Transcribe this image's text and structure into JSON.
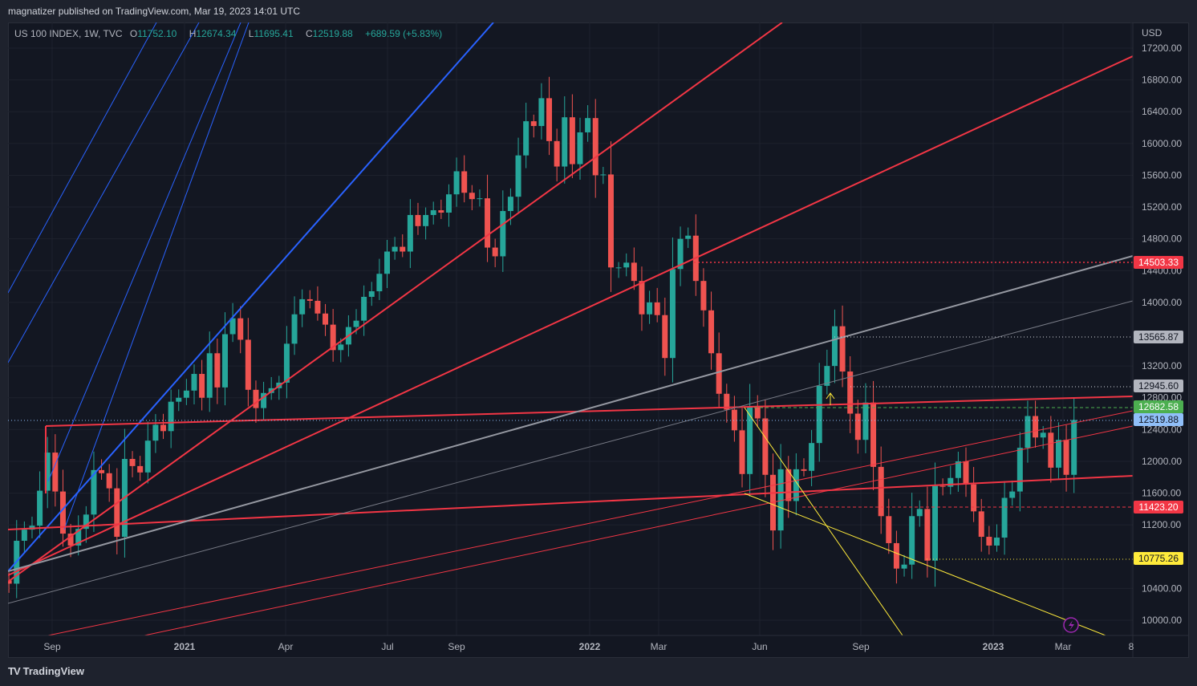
{
  "publisher_line": "magnatizer published on TradingView.com, Mar 19, 2023 14:01 UTC",
  "legend": {
    "symbol": "US 100 INDEX, 1W, TVC",
    "o_label": "O",
    "o": "11752.10",
    "h_label": "H",
    "h": "12674.34",
    "l_label": "L",
    "l": "11695.41",
    "c_label": "C",
    "c": "12519.88",
    "change": "+689.59 (+5.83%)"
  },
  "currency": "USD",
  "price_axis": [
    "17200.00",
    "16800.00",
    "16400.00",
    "16000.00",
    "15600.00",
    "15200.00",
    "14800.00",
    "14400.00",
    "14000.00",
    "13200.00",
    "12800.00",
    "12400.00",
    "12000.00",
    "11600.00",
    "11200.00",
    "10400.00",
    "10000.00"
  ],
  "time_axis": [
    {
      "label": "Sep",
      "bold": false
    },
    {
      "label": "2021",
      "bold": true
    },
    {
      "label": "Apr",
      "bold": false
    },
    {
      "label": "Jul",
      "bold": false
    },
    {
      "label": "Sep",
      "bold": false
    },
    {
      "label": "2022",
      "bold": true
    },
    {
      "label": "Mar",
      "bold": false
    },
    {
      "label": "Jun",
      "bold": false
    },
    {
      "label": "Sep",
      "bold": false
    },
    {
      "label": "2023",
      "bold": true
    },
    {
      "label": "Mar",
      "bold": false
    },
    {
      "label": "8",
      "bold": false
    }
  ],
  "badges": [
    {
      "value": "14503.33",
      "bg": "#f23645",
      "fg": "#ffffff"
    },
    {
      "value": "13565.87",
      "bg": "#b2b5be",
      "fg": "#131722"
    },
    {
      "value": "12945.60",
      "bg": "#b2b5be",
      "fg": "#131722"
    },
    {
      "value": "12682.58",
      "bg": "#4caf50",
      "fg": "#ffffff"
    },
    {
      "value": "12519.88",
      "bg": "#90bff9",
      "fg": "#131722"
    },
    {
      "value": "11423.20",
      "bg": "#f23645",
      "fg": "#ffffff"
    },
    {
      "value": "10775.26",
      "bg": "#ffeb3b",
      "fg": "#131722"
    }
  ],
  "colors": {
    "up": "#26a69a",
    "down": "#ef5350",
    "bg": "#131722",
    "red_line": "#f23645",
    "blue_line": "#2962ff",
    "gray_line": "#787b86",
    "yellow_line": "#ffeb3b"
  },
  "first_open": 10450,
  "weekly_closes": [
    10500,
    10460,
    11000,
    11140,
    11190,
    11630,
    12110,
    11620,
    11090,
    10940,
    11150,
    11330,
    11890,
    11850,
    11660,
    11050,
    12030,
    11940,
    11860,
    12260,
    12460,
    12380,
    12750,
    12800,
    12890,
    13100,
    12800,
    13360,
    12930,
    13600,
    13800,
    13530,
    12900,
    12670,
    12860,
    12920,
    12990,
    13480,
    13850,
    14040,
    14020,
    13860,
    13720,
    13400,
    13470,
    13690,
    13770,
    14070,
    14140,
    14360,
    14640,
    14700,
    14640,
    15100,
    14960,
    15100,
    15160,
    15130,
    15360,
    15650,
    15380,
    15300,
    15310,
    14690,
    14580,
    15150,
    15330,
    15850,
    16280,
    16220,
    16570,
    16030,
    15710,
    16330,
    15740,
    16140,
    16320,
    15600,
    15610,
    14440,
    14440,
    14500,
    14270,
    13850,
    14000,
    13840,
    13300,
    14420,
    14800,
    14840,
    14270,
    13900,
    13360,
    12850,
    12650,
    12390,
    11840,
    12680,
    12540,
    11830,
    11130,
    11900,
    11500,
    11900,
    11880,
    12230,
    12950,
    13200,
    13700,
    13130,
    12600,
    12270,
    12740,
    11930,
    11310,
    10970,
    10650,
    10700,
    11310,
    11400,
    10750,
    11690,
    11680,
    11790,
    12000,
    11710,
    11370,
    11050,
    10940,
    11040,
    11540,
    11620,
    12170,
    12570,
    12300,
    12360,
    11920,
    12270,
    11830,
    12520
  ],
  "footer_logo": "TradingView",
  "logo_mark": "17"
}
